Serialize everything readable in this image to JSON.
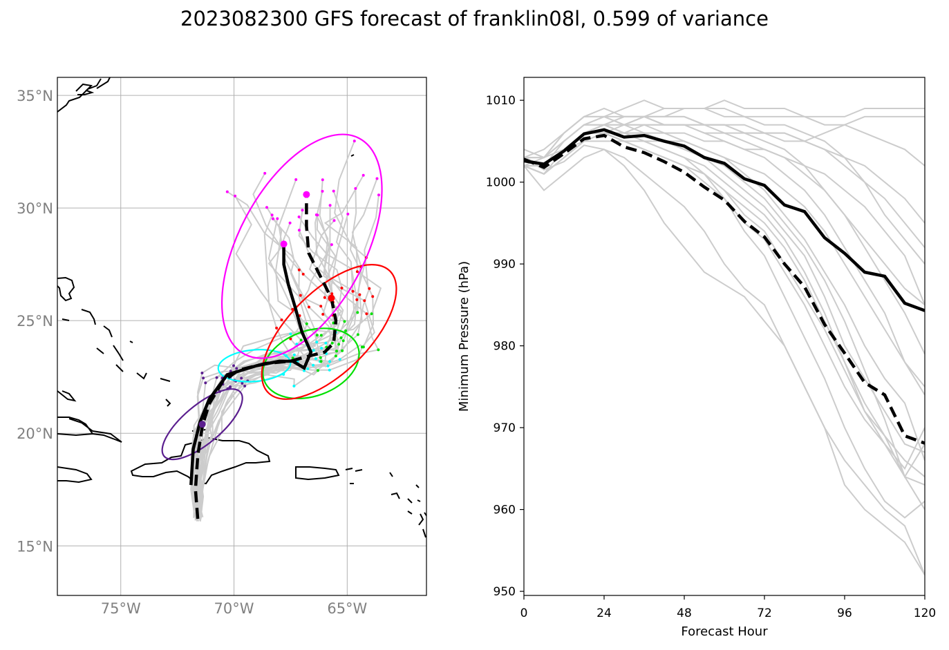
{
  "figure": {
    "title": "2023082300 GFS forecast of franklin08l, 0.599 of variance"
  },
  "chart_data": [
    {
      "type": "map-tracks",
      "xlim": [
        -77.8,
        -61.5
      ],
      "ylim": [
        12.8,
        35.8
      ],
      "x_ticks": [
        -75,
        -70,
        -65
      ],
      "y_ticks": [
        15,
        20,
        25,
        30,
        35
      ],
      "x_tick_labels": [
        "75°W",
        "70°W",
        "65°W"
      ],
      "y_tick_labels": [
        "15°N",
        "20°N",
        "25°N",
        "30°N",
        "35°N"
      ],
      "grid": true,
      "colors": {
        "ensemble": "#cccccc",
        "mean": "#000000",
        "coast": "#000000",
        "ellipses": [
          "#5b1f8f",
          "#00ffff",
          "#00e000",
          "#ff0000",
          "#ff00ff"
        ]
      },
      "mean_track_solid": [
        [
          -71.9,
          17.7
        ],
        [
          -71.8,
          19.3
        ],
        [
          -71.5,
          20.5
        ],
        [
          -71.1,
          21.5
        ],
        [
          -70.3,
          22.6
        ],
        [
          -69.0,
          23.0
        ],
        [
          -68.0,
          23.2
        ],
        [
          -67.4,
          23.2
        ],
        [
          -66.9,
          22.9
        ],
        [
          -66.6,
          23.6
        ],
        [
          -67.0,
          24.5
        ],
        [
          -67.3,
          25.6
        ],
        [
          -67.6,
          26.6
        ],
        [
          -67.8,
          27.5
        ],
        [
          -67.8,
          28.4
        ]
      ],
      "mean_track_dashed": [
        [
          -71.6,
          16.2
        ],
        [
          -71.7,
          17.5
        ],
        [
          -71.6,
          19.0
        ],
        [
          -71.4,
          20.3
        ],
        [
          -71.1,
          21.3
        ],
        [
          -70.5,
          22.3
        ],
        [
          -69.8,
          22.8
        ],
        [
          -68.6,
          23.1
        ],
        [
          -67.5,
          23.2
        ],
        [
          -66.8,
          23.4
        ],
        [
          -66.0,
          23.6
        ],
        [
          -65.6,
          24.0
        ],
        [
          -65.5,
          25.0
        ],
        [
          -65.7,
          26.0
        ],
        [
          -66.2,
          27.0
        ],
        [
          -66.7,
          28.0
        ],
        [
          -66.8,
          29.2
        ],
        [
          -66.8,
          30.6
        ]
      ],
      "ellipses": [
        {
          "color": "#5b1f8f",
          "cx": -71.4,
          "cy": 20.4,
          "rx": 2.2,
          "ry": 0.85,
          "angle": 40
        },
        {
          "color": "#00ffff",
          "cx": -69.1,
          "cy": 23.0,
          "rx": 1.6,
          "ry": 0.7,
          "angle": 5
        },
        {
          "color": "#00e000",
          "cx": -66.6,
          "cy": 23.1,
          "rx": 2.2,
          "ry": 1.45,
          "angle": 20
        },
        {
          "color": "#ff0000",
          "cx": -65.8,
          "cy": 24.5,
          "rx": 3.8,
          "ry": 1.8,
          "angle": 45
        },
        {
          "color": "#ff00ff",
          "cx": -67.0,
          "cy": 28.3,
          "rx": 5.4,
          "ry": 2.8,
          "angle": 62
        }
      ],
      "mean_markers": [
        {
          "color": "#5b1f8f",
          "lon": -71.4,
          "lat": 20.4
        },
        {
          "color": "#ff00ff",
          "lon": -67.8,
          "lat": 28.4
        },
        {
          "color": "#ff00ff",
          "lon": -66.8,
          "lat": 30.6
        },
        {
          "color": "#ff0000",
          "lon": -65.7,
          "lat": 26.0
        }
      ]
    },
    {
      "type": "line",
      "xlabel": "Forecast Hour",
      "ylabel": "Minimum Pressure (hPa)",
      "xlim": [
        0,
        120
      ],
      "ylim": [
        949.5,
        1012.8
      ],
      "x_ticks": [
        0,
        24,
        48,
        72,
        96,
        120
      ],
      "y_ticks": [
        950,
        960,
        970,
        980,
        990,
        1000,
        1010
      ],
      "x": [
        0,
        6,
        12,
        18,
        24,
        30,
        36,
        42,
        48,
        54,
        60,
        66,
        72,
        78,
        84,
        90,
        96,
        102,
        108,
        114,
        120
      ],
      "series": [
        {
          "style": "mean-solid",
          "color": "#000000",
          "values": [
            1002.6,
            1002.2,
            1003.8,
            1005.9,
            1006.4,
            1005.5,
            1005.7,
            1005.0,
            1004.4,
            1003.0,
            1002.3,
            1000.4,
            999.6,
            997.2,
            996.4,
            993.2,
            991.3,
            989.0,
            988.5,
            985.2,
            984.3
          ]
        },
        {
          "style": "mean-dashed",
          "color": "#000000",
          "values": [
            1002.8,
            1001.8,
            1003.5,
            1005.3,
            1005.7,
            1004.3,
            1003.6,
            1002.5,
            1001.2,
            999.4,
            997.8,
            995.2,
            993.3,
            990.0,
            987.2,
            982.6,
            979.1,
            975.5,
            974.0,
            969.0,
            968.1
          ]
        },
        {
          "color": "#cccccc",
          "values": [
            1003.0,
            1001.5,
            1002.5,
            1004.5,
            1004.0,
            1002.0,
            999.0,
            995.0,
            992.0,
            989.0,
            987.5,
            986.0,
            983.0,
            980.0,
            975.0,
            970.0,
            963.0,
            960.0,
            958.0,
            956.0,
            952.0
          ]
        },
        {
          "color": "#cccccc",
          "values": [
            1002.0,
            999.0,
            1001.0,
            1003.0,
            1004.0,
            1003.0,
            1001.0,
            999.0,
            997.0,
            994.0,
            990.0,
            987.0,
            985.0,
            980.0,
            975.0,
            970.0,
            966.0,
            963.0,
            960.0,
            958.0,
            952.0
          ]
        },
        {
          "color": "#cccccc",
          "values": [
            1003.0,
            1002.0,
            1004.0,
            1006.0,
            1007.0,
            1006.0,
            1005.0,
            1004.0,
            1003.0,
            1001.0,
            998.0,
            994.0,
            991.0,
            986.0,
            981.0,
            976.0,
            970.0,
            965.0,
            961.0,
            959.0,
            961.0
          ]
        },
        {
          "color": "#cccccc",
          "values": [
            1002.0,
            1001.0,
            1003.0,
            1005.0,
            1006.0,
            1005.0,
            1004.0,
            1003.0,
            1002.0,
            1000.0,
            998.0,
            995.0,
            993.0,
            989.0,
            985.0,
            980.0,
            975.0,
            971.0,
            968.0,
            964.0,
            963.0
          ]
        },
        {
          "color": "#cccccc",
          "values": [
            1003.0,
            1003.0,
            1005.0,
            1007.0,
            1008.0,
            1007.0,
            1007.0,
            1006.0,
            1005.0,
            1004.0,
            1003.0,
            1001.0,
            999.0,
            996.0,
            993.0,
            989.0,
            985.0,
            980.0,
            976.0,
            973.0,
            966.0
          ]
        },
        {
          "color": "#cccccc",
          "values": [
            1004.0,
            1003.0,
            1006.0,
            1008.0,
            1009.0,
            1008.0,
            1008.0,
            1007.0,
            1007.0,
            1006.0,
            1005.0,
            1004.0,
            1003.0,
            1001.0,
            999.0,
            996.0,
            992.0,
            988.0,
            984.0,
            978.0,
            974.0
          ]
        },
        {
          "color": "#cccccc",
          "values": [
            1003.0,
            1002.0,
            1004.0,
            1006.0,
            1007.0,
            1007.0,
            1008.0,
            1008.0,
            1008.0,
            1007.0,
            1007.0,
            1006.0,
            1005.0,
            1004.0,
            1002.0,
            999.0,
            996.0,
            992.0,
            988.0,
            984.0,
            979.0
          ]
        },
        {
          "color": "#cccccc",
          "values": [
            1002.0,
            1001.0,
            1003.0,
            1005.0,
            1006.0,
            1006.0,
            1006.0,
            1006.0,
            1006.0,
            1005.0,
            1005.0,
            1004.0,
            1004.0,
            1003.0,
            1002.0,
            1001.0,
            999.0,
            997.0,
            994.0,
            991.0,
            985.0
          ]
        },
        {
          "color": "#cccccc",
          "values": [
            1003.0,
            1004.0,
            1006.0,
            1008.0,
            1008.0,
            1009.0,
            1010.0,
            1009.0,
            1009.0,
            1009.0,
            1008.0,
            1008.0,
            1007.0,
            1007.0,
            1006.0,
            1005.0,
            1003.0,
            1000.0,
            996.0,
            993.0,
            990.0
          ]
        },
        {
          "color": "#cccccc",
          "values": [
            1002.0,
            1002.0,
            1004.0,
            1005.0,
            1006.0,
            1007.0,
            1007.0,
            1007.0,
            1007.0,
            1007.0,
            1007.0,
            1006.0,
            1006.0,
            1006.0,
            1005.0,
            1004.0,
            1003.0,
            1002.0,
            1000.0,
            998.0,
            995.0
          ]
        },
        {
          "color": "#cccccc",
          "values": [
            1003.0,
            1003.0,
            1005.0,
            1007.0,
            1007.0,
            1008.0,
            1008.0,
            1008.0,
            1009.0,
            1009.0,
            1009.0,
            1008.0,
            1008.0,
            1008.0,
            1008.0,
            1007.0,
            1007.0,
            1006.0,
            1005.0,
            1004.0,
            1002.0
          ]
        },
        {
          "color": "#cccccc",
          "values": [
            1002.0,
            1003.0,
            1004.0,
            1006.0,
            1007.0,
            1007.0,
            1008.0,
            1009.0,
            1009.0,
            1009.0,
            1010.0,
            1009.0,
            1009.0,
            1009.0,
            1008.0,
            1008.0,
            1008.0,
            1009.0,
            1009.0,
            1009.0,
            1009.0
          ]
        },
        {
          "color": "#cccccc",
          "values": [
            1003.0,
            1002.0,
            1004.0,
            1006.0,
            1007.0,
            1006.0,
            1007.0,
            1007.0,
            1007.0,
            1007.0,
            1006.0,
            1006.0,
            1006.0,
            1005.0,
            1005.0,
            1006.0,
            1007.0,
            1008.0,
            1008.0,
            1008.0,
            1008.0
          ]
        },
        {
          "color": "#cccccc",
          "values": [
            1002.0,
            1001.0,
            1003.0,
            1005.0,
            1005.0,
            1005.0,
            1004.0,
            1003.0,
            1002.0,
            1001.0,
            999.0,
            996.0,
            994.0,
            990.0,
            986.0,
            982.0,
            977.0,
            972.0,
            969.0,
            966.0,
            964.0
          ]
        },
        {
          "color": "#cccccc",
          "values": [
            1003.0,
            1002.0,
            1005.0,
            1007.0,
            1008.0,
            1007.0,
            1006.0,
            1005.0,
            1004.0,
            1003.0,
            1001.0,
            999.0,
            997.0,
            994.0,
            991.0,
            986.0,
            980.0,
            976.0,
            972.0,
            968.0,
            967.0
          ]
        },
        {
          "color": "#cccccc",
          "values": [
            1002.0,
            1002.0,
            1004.0,
            1006.0,
            1007.0,
            1006.0,
            1006.0,
            1005.0,
            1005.0,
            1004.0,
            1003.0,
            1002.0,
            1001.0,
            999.0,
            997.0,
            994.0,
            990.0,
            986.0,
            982.0,
            978.0,
            975.0
          ]
        },
        {
          "color": "#cccccc",
          "values": [
            1003.0,
            1003.0,
            1005.0,
            1007.0,
            1007.0,
            1008.0,
            1008.0,
            1007.0,
            1007.0,
            1006.0,
            1006.0,
            1005.0,
            1004.0,
            1003.0,
            1001.0,
            999.0,
            996.0,
            993.0,
            990.0,
            987.0,
            985.0
          ]
        },
        {
          "color": "#cccccc",
          "values": [
            1002.0,
            1001.0,
            1004.0,
            1006.0,
            1006.0,
            1006.0,
            1005.0,
            1005.0,
            1004.0,
            1003.0,
            1002.0,
            1000.0,
            998.0,
            995.0,
            992.0,
            988.0,
            983.0,
            977.0,
            971.0,
            964.0,
            968.0
          ]
        },
        {
          "color": "#cccccc",
          "values": [
            1004.0,
            1003.0,
            1006.0,
            1008.0,
            1008.0,
            1008.0,
            1008.0,
            1008.0,
            1008.0,
            1007.0,
            1007.0,
            1007.0,
            1006.0,
            1006.0,
            1005.0,
            1004.0,
            1002.0,
            1000.0,
            998.0,
            995.0,
            992.0
          ]
        },
        {
          "color": "#cccccc",
          "values": [
            1003.0,
            1002.0,
            1004.0,
            1006.0,
            1006.0,
            1005.0,
            1005.0,
            1004.0,
            1003.0,
            1002.0,
            1000.0,
            998.0,
            996.0,
            993.0,
            989.0,
            984.0,
            978.0,
            972.0,
            968.0,
            965.0,
            970.0
          ]
        },
        {
          "color": "#cccccc",
          "values": [
            1002.0,
            1001.0,
            1003.0,
            1005.0,
            1006.0,
            1005.0,
            1004.0,
            1003.0,
            1002.0,
            1001.0,
            999.0,
            997.0,
            995.0,
            992.0,
            988.0,
            983.0,
            978.0,
            973.0,
            969.0,
            964.0,
            960.0
          ]
        }
      ]
    }
  ]
}
